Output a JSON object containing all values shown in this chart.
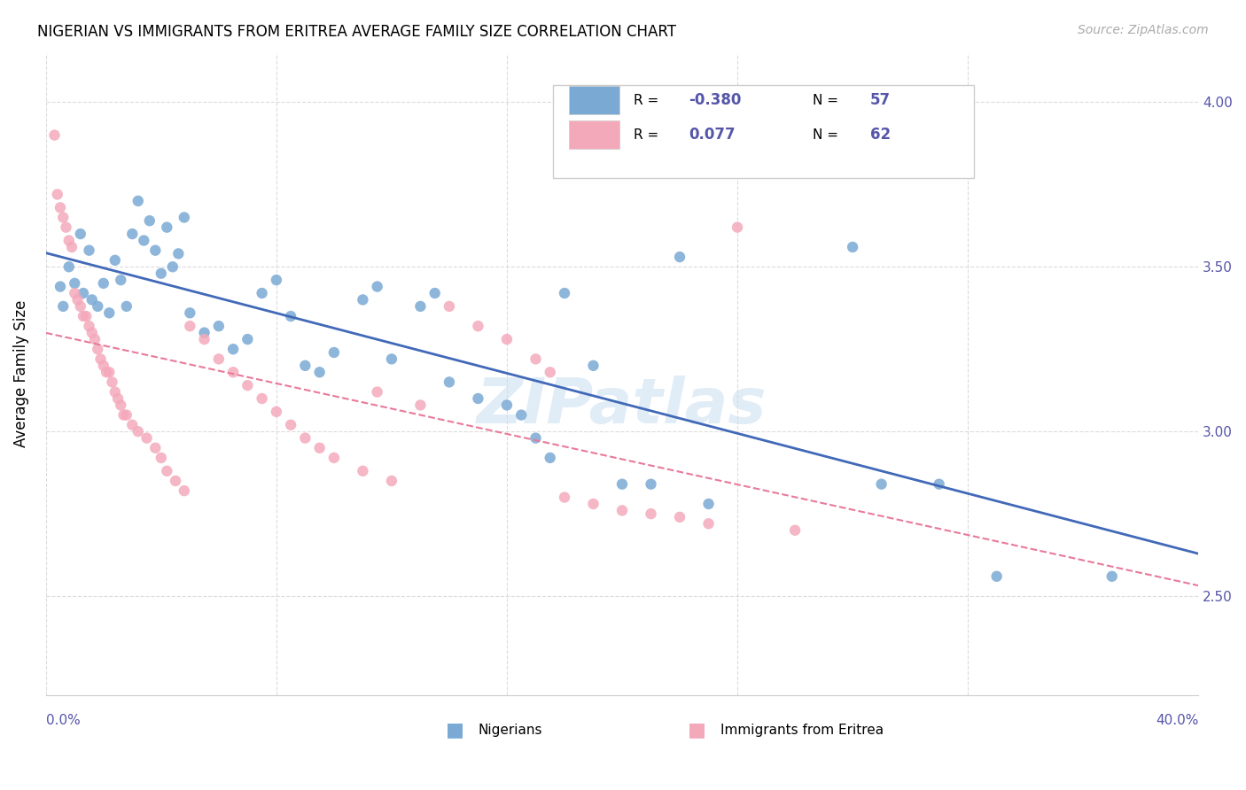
{
  "title": "NIGERIAN VS IMMIGRANTS FROM ERITREA AVERAGE FAMILY SIZE CORRELATION CHART",
  "source": "Source: ZipAtlas.com",
  "ylabel": "Average Family Size",
  "yticks": [
    2.5,
    3.0,
    3.5,
    4.0
  ],
  "xlim": [
    0.0,
    0.4
  ],
  "ylim": [
    2.2,
    4.15
  ],
  "blue_color": "#7aaad4",
  "pink_color": "#f4a9bb",
  "blue_line_color": "#4169b8",
  "pink_line_color": "#e87a9a",
  "axis_color": "#5555aa",
  "grid_color": "#cccccc",
  "watermark": "ZIPatlas",
  "blue_scatter": [
    [
      0.005,
      3.44
    ],
    [
      0.006,
      3.38
    ],
    [
      0.008,
      3.5
    ],
    [
      0.01,
      3.45
    ],
    [
      0.012,
      3.6
    ],
    [
      0.013,
      3.42
    ],
    [
      0.015,
      3.55
    ],
    [
      0.016,
      3.4
    ],
    [
      0.018,
      3.38
    ],
    [
      0.02,
      3.45
    ],
    [
      0.022,
      3.36
    ],
    [
      0.024,
      3.52
    ],
    [
      0.026,
      3.46
    ],
    [
      0.028,
      3.38
    ],
    [
      0.03,
      3.6
    ],
    [
      0.032,
      3.7
    ],
    [
      0.034,
      3.58
    ],
    [
      0.036,
      3.64
    ],
    [
      0.038,
      3.55
    ],
    [
      0.04,
      3.48
    ],
    [
      0.042,
      3.62
    ],
    [
      0.044,
      3.5
    ],
    [
      0.046,
      3.54
    ],
    [
      0.048,
      3.65
    ],
    [
      0.05,
      3.36
    ],
    [
      0.055,
      3.3
    ],
    [
      0.06,
      3.32
    ],
    [
      0.065,
      3.25
    ],
    [
      0.07,
      3.28
    ],
    [
      0.075,
      3.42
    ],
    [
      0.08,
      3.46
    ],
    [
      0.085,
      3.35
    ],
    [
      0.09,
      3.2
    ],
    [
      0.095,
      3.18
    ],
    [
      0.1,
      3.24
    ],
    [
      0.11,
      3.4
    ],
    [
      0.115,
      3.44
    ],
    [
      0.12,
      3.22
    ],
    [
      0.13,
      3.38
    ],
    [
      0.135,
      3.42
    ],
    [
      0.14,
      3.15
    ],
    [
      0.15,
      3.1
    ],
    [
      0.16,
      3.08
    ],
    [
      0.165,
      3.05
    ],
    [
      0.17,
      2.98
    ],
    [
      0.175,
      2.92
    ],
    [
      0.18,
      3.42
    ],
    [
      0.19,
      3.2
    ],
    [
      0.2,
      2.84
    ],
    [
      0.21,
      2.84
    ],
    [
      0.22,
      3.53
    ],
    [
      0.23,
      2.78
    ],
    [
      0.28,
      3.56
    ],
    [
      0.29,
      2.84
    ],
    [
      0.31,
      2.84
    ],
    [
      0.33,
      2.56
    ],
    [
      0.37,
      2.56
    ]
  ],
  "pink_scatter": [
    [
      0.003,
      3.9
    ],
    [
      0.004,
      3.72
    ],
    [
      0.005,
      3.68
    ],
    [
      0.006,
      3.65
    ],
    [
      0.007,
      3.62
    ],
    [
      0.008,
      3.58
    ],
    [
      0.009,
      3.56
    ],
    [
      0.01,
      3.42
    ],
    [
      0.011,
      3.4
    ],
    [
      0.012,
      3.38
    ],
    [
      0.013,
      3.35
    ],
    [
      0.014,
      3.35
    ],
    [
      0.015,
      3.32
    ],
    [
      0.016,
      3.3
    ],
    [
      0.017,
      3.28
    ],
    [
      0.018,
      3.25
    ],
    [
      0.019,
      3.22
    ],
    [
      0.02,
      3.2
    ],
    [
      0.021,
      3.18
    ],
    [
      0.022,
      3.18
    ],
    [
      0.023,
      3.15
    ],
    [
      0.024,
      3.12
    ],
    [
      0.025,
      3.1
    ],
    [
      0.026,
      3.08
    ],
    [
      0.027,
      3.05
    ],
    [
      0.028,
      3.05
    ],
    [
      0.03,
      3.02
    ],
    [
      0.032,
      3.0
    ],
    [
      0.035,
      2.98
    ],
    [
      0.038,
      2.95
    ],
    [
      0.04,
      2.92
    ],
    [
      0.042,
      2.88
    ],
    [
      0.045,
      2.85
    ],
    [
      0.048,
      2.82
    ],
    [
      0.05,
      3.32
    ],
    [
      0.055,
      3.28
    ],
    [
      0.06,
      3.22
    ],
    [
      0.065,
      3.18
    ],
    [
      0.07,
      3.14
    ],
    [
      0.075,
      3.1
    ],
    [
      0.08,
      3.06
    ],
    [
      0.085,
      3.02
    ],
    [
      0.09,
      2.98
    ],
    [
      0.095,
      2.95
    ],
    [
      0.1,
      2.92
    ],
    [
      0.11,
      2.88
    ],
    [
      0.115,
      3.12
    ],
    [
      0.12,
      2.85
    ],
    [
      0.13,
      3.08
    ],
    [
      0.14,
      3.38
    ],
    [
      0.15,
      3.32
    ],
    [
      0.16,
      3.28
    ],
    [
      0.17,
      3.22
    ],
    [
      0.175,
      3.18
    ],
    [
      0.18,
      2.8
    ],
    [
      0.19,
      2.78
    ],
    [
      0.2,
      2.76
    ],
    [
      0.21,
      2.75
    ],
    [
      0.22,
      2.74
    ],
    [
      0.23,
      2.72
    ],
    [
      0.24,
      3.62
    ],
    [
      0.26,
      2.7
    ]
  ]
}
